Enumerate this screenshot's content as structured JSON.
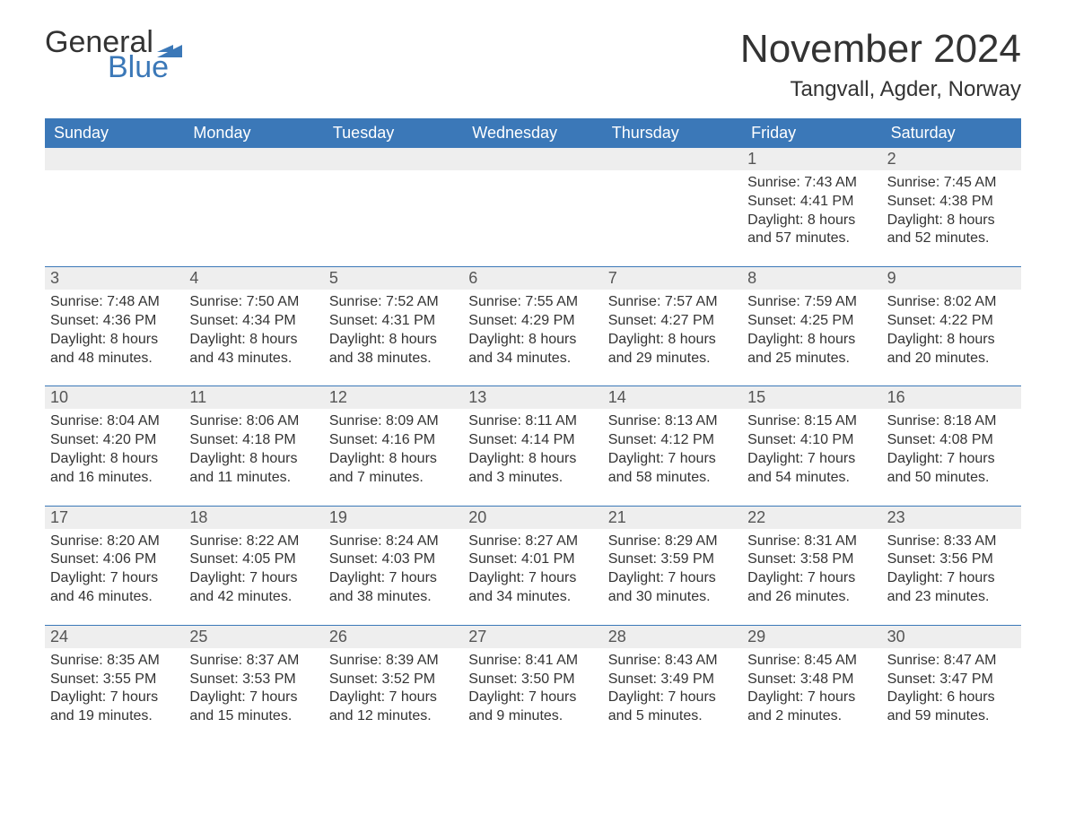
{
  "logo": {
    "text1": "General",
    "text2": "Blue",
    "flag_color": "#3b78b8"
  },
  "title": "November 2024",
  "location": "Tangvall, Agder, Norway",
  "header_bg": "#3b78b8",
  "header_text_color": "#ffffff",
  "daynum_bg": "#eeeeee",
  "row_border": "#3b78b8",
  "weekdays": [
    "Sunday",
    "Monday",
    "Tuesday",
    "Wednesday",
    "Thursday",
    "Friday",
    "Saturday"
  ],
  "weeks": [
    [
      null,
      null,
      null,
      null,
      null,
      {
        "n": "1",
        "sr": "Sunrise: 7:43 AM",
        "ss": "Sunset: 4:41 PM",
        "d1": "Daylight: 8 hours",
        "d2": "and 57 minutes."
      },
      {
        "n": "2",
        "sr": "Sunrise: 7:45 AM",
        "ss": "Sunset: 4:38 PM",
        "d1": "Daylight: 8 hours",
        "d2": "and 52 minutes."
      }
    ],
    [
      {
        "n": "3",
        "sr": "Sunrise: 7:48 AM",
        "ss": "Sunset: 4:36 PM",
        "d1": "Daylight: 8 hours",
        "d2": "and 48 minutes."
      },
      {
        "n": "4",
        "sr": "Sunrise: 7:50 AM",
        "ss": "Sunset: 4:34 PM",
        "d1": "Daylight: 8 hours",
        "d2": "and 43 minutes."
      },
      {
        "n": "5",
        "sr": "Sunrise: 7:52 AM",
        "ss": "Sunset: 4:31 PM",
        "d1": "Daylight: 8 hours",
        "d2": "and 38 minutes."
      },
      {
        "n": "6",
        "sr": "Sunrise: 7:55 AM",
        "ss": "Sunset: 4:29 PM",
        "d1": "Daylight: 8 hours",
        "d2": "and 34 minutes."
      },
      {
        "n": "7",
        "sr": "Sunrise: 7:57 AM",
        "ss": "Sunset: 4:27 PM",
        "d1": "Daylight: 8 hours",
        "d2": "and 29 minutes."
      },
      {
        "n": "8",
        "sr": "Sunrise: 7:59 AM",
        "ss": "Sunset: 4:25 PM",
        "d1": "Daylight: 8 hours",
        "d2": "and 25 minutes."
      },
      {
        "n": "9",
        "sr": "Sunrise: 8:02 AM",
        "ss": "Sunset: 4:22 PM",
        "d1": "Daylight: 8 hours",
        "d2": "and 20 minutes."
      }
    ],
    [
      {
        "n": "10",
        "sr": "Sunrise: 8:04 AM",
        "ss": "Sunset: 4:20 PM",
        "d1": "Daylight: 8 hours",
        "d2": "and 16 minutes."
      },
      {
        "n": "11",
        "sr": "Sunrise: 8:06 AM",
        "ss": "Sunset: 4:18 PM",
        "d1": "Daylight: 8 hours",
        "d2": "and 11 minutes."
      },
      {
        "n": "12",
        "sr": "Sunrise: 8:09 AM",
        "ss": "Sunset: 4:16 PM",
        "d1": "Daylight: 8 hours",
        "d2": "and 7 minutes."
      },
      {
        "n": "13",
        "sr": "Sunrise: 8:11 AM",
        "ss": "Sunset: 4:14 PM",
        "d1": "Daylight: 8 hours",
        "d2": "and 3 minutes."
      },
      {
        "n": "14",
        "sr": "Sunrise: 8:13 AM",
        "ss": "Sunset: 4:12 PM",
        "d1": "Daylight: 7 hours",
        "d2": "and 58 minutes."
      },
      {
        "n": "15",
        "sr": "Sunrise: 8:15 AM",
        "ss": "Sunset: 4:10 PM",
        "d1": "Daylight: 7 hours",
        "d2": "and 54 minutes."
      },
      {
        "n": "16",
        "sr": "Sunrise: 8:18 AM",
        "ss": "Sunset: 4:08 PM",
        "d1": "Daylight: 7 hours",
        "d2": "and 50 minutes."
      }
    ],
    [
      {
        "n": "17",
        "sr": "Sunrise: 8:20 AM",
        "ss": "Sunset: 4:06 PM",
        "d1": "Daylight: 7 hours",
        "d2": "and 46 minutes."
      },
      {
        "n": "18",
        "sr": "Sunrise: 8:22 AM",
        "ss": "Sunset: 4:05 PM",
        "d1": "Daylight: 7 hours",
        "d2": "and 42 minutes."
      },
      {
        "n": "19",
        "sr": "Sunrise: 8:24 AM",
        "ss": "Sunset: 4:03 PM",
        "d1": "Daylight: 7 hours",
        "d2": "and 38 minutes."
      },
      {
        "n": "20",
        "sr": "Sunrise: 8:27 AM",
        "ss": "Sunset: 4:01 PM",
        "d1": "Daylight: 7 hours",
        "d2": "and 34 minutes."
      },
      {
        "n": "21",
        "sr": "Sunrise: 8:29 AM",
        "ss": "Sunset: 3:59 PM",
        "d1": "Daylight: 7 hours",
        "d2": "and 30 minutes."
      },
      {
        "n": "22",
        "sr": "Sunrise: 8:31 AM",
        "ss": "Sunset: 3:58 PM",
        "d1": "Daylight: 7 hours",
        "d2": "and 26 minutes."
      },
      {
        "n": "23",
        "sr": "Sunrise: 8:33 AM",
        "ss": "Sunset: 3:56 PM",
        "d1": "Daylight: 7 hours",
        "d2": "and 23 minutes."
      }
    ],
    [
      {
        "n": "24",
        "sr": "Sunrise: 8:35 AM",
        "ss": "Sunset: 3:55 PM",
        "d1": "Daylight: 7 hours",
        "d2": "and 19 minutes."
      },
      {
        "n": "25",
        "sr": "Sunrise: 8:37 AM",
        "ss": "Sunset: 3:53 PM",
        "d1": "Daylight: 7 hours",
        "d2": "and 15 minutes."
      },
      {
        "n": "26",
        "sr": "Sunrise: 8:39 AM",
        "ss": "Sunset: 3:52 PM",
        "d1": "Daylight: 7 hours",
        "d2": "and 12 minutes."
      },
      {
        "n": "27",
        "sr": "Sunrise: 8:41 AM",
        "ss": "Sunset: 3:50 PM",
        "d1": "Daylight: 7 hours",
        "d2": "and 9 minutes."
      },
      {
        "n": "28",
        "sr": "Sunrise: 8:43 AM",
        "ss": "Sunset: 3:49 PM",
        "d1": "Daylight: 7 hours",
        "d2": "and 5 minutes."
      },
      {
        "n": "29",
        "sr": "Sunrise: 8:45 AM",
        "ss": "Sunset: 3:48 PM",
        "d1": "Daylight: 7 hours",
        "d2": "and 2 minutes."
      },
      {
        "n": "30",
        "sr": "Sunrise: 8:47 AM",
        "ss": "Sunset: 3:47 PM",
        "d1": "Daylight: 6 hours",
        "d2": "and 59 minutes."
      }
    ]
  ]
}
